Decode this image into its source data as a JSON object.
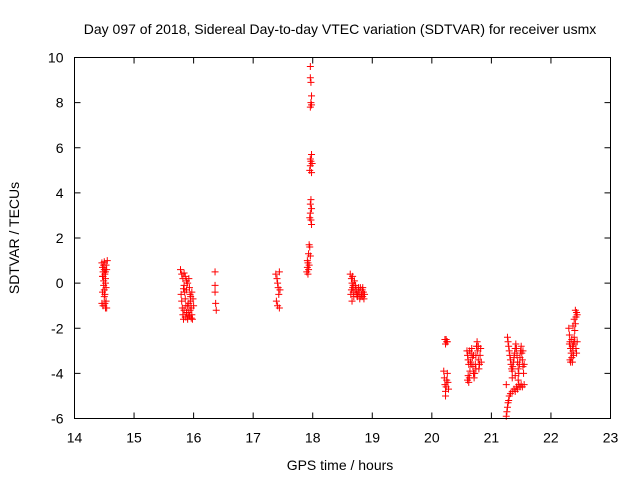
{
  "chart_data": {
    "type": "scatter",
    "title": "Day 097 of 2018, Sidereal Day-to-day VTEC variation (SDTVAR) for receiver usmx",
    "xlabel": "GPS time / hours",
    "ylabel": "SDTVAR / TECUs",
    "xlim": [
      14,
      23
    ],
    "ylim": [
      -6,
      10
    ],
    "xticks": [
      "14",
      "15",
      "16",
      "17",
      "18",
      "19",
      "20",
      "21",
      "22",
      "23"
    ],
    "yticks": [
      "-6",
      "-4",
      "-2",
      "0",
      "2",
      "4",
      "6",
      "8",
      "10"
    ],
    "grid": false,
    "marker": "plus",
    "marker_color": "#ff0000",
    "series": [
      {
        "name": "SDTVAR",
        "points": [
          [
            14.46,
            0.9
          ],
          [
            14.47,
            0.7
          ],
          [
            14.48,
            0.5
          ],
          [
            14.48,
            0.3
          ],
          [
            14.49,
            0.1
          ],
          [
            14.49,
            -0.1
          ],
          [
            14.5,
            -0.3
          ],
          [
            14.5,
            -0.6
          ],
          [
            14.51,
            -0.9
          ],
          [
            14.52,
            -1.1
          ],
          [
            14.5,
            0.6
          ],
          [
            14.51,
            0.4
          ],
          [
            14.52,
            0.2
          ],
          [
            14.52,
            0.0
          ],
          [
            14.53,
            0.8
          ],
          [
            14.49,
            0.8
          ],
          [
            14.47,
            0.3
          ],
          [
            14.51,
            -0.5
          ],
          [
            14.53,
            -0.8
          ],
          [
            14.48,
            -1.0
          ],
          [
            14.54,
            0.6
          ],
          [
            14.55,
            1.0
          ],
          [
            14.53,
            -0.2
          ],
          [
            14.47,
            -0.4
          ],
          [
            14.46,
            -0.9
          ],
          [
            14.5,
            0.95
          ],
          [
            14.52,
            0.5
          ],
          [
            14.54,
            -1.1
          ],
          [
            15.78,
            0.6
          ],
          [
            15.8,
            0.4
          ],
          [
            15.82,
            0.2
          ],
          [
            15.84,
            -0.1
          ],
          [
            15.85,
            -0.4
          ],
          [
            15.86,
            -0.7
          ],
          [
            15.87,
            -1.0
          ],
          [
            15.88,
            -1.3
          ],
          [
            15.89,
            -1.5
          ],
          [
            15.9,
            -1.6
          ],
          [
            15.8,
            -0.8
          ],
          [
            15.81,
            -1.1
          ],
          [
            15.82,
            -1.4
          ],
          [
            15.83,
            -1.6
          ],
          [
            15.79,
            -0.5
          ],
          [
            15.84,
            -1.2
          ],
          [
            15.86,
            -1.5
          ],
          [
            15.88,
            -0.3
          ],
          [
            15.9,
            0.0
          ],
          [
            15.92,
            0.2
          ],
          [
            15.93,
            -0.2
          ],
          [
            15.94,
            -0.5
          ],
          [
            15.95,
            -0.8
          ],
          [
            15.96,
            -1.1
          ],
          [
            15.97,
            -1.4
          ],
          [
            15.98,
            -1.6
          ],
          [
            15.92,
            -0.9
          ],
          [
            15.91,
            -1.3
          ],
          [
            15.95,
            -0.6
          ],
          [
            15.97,
            -0.4
          ],
          [
            15.99,
            -0.7
          ],
          [
            16.0,
            -1.0
          ],
          [
            15.88,
            0.1
          ],
          [
            15.86,
            0.3
          ],
          [
            15.84,
            0.45
          ],
          [
            15.83,
            -0.25
          ],
          [
            15.96,
            -1.55
          ],
          [
            15.94,
            -1.2
          ],
          [
            15.9,
            -1.0
          ],
          [
            15.93,
            -1.45
          ],
          [
            16.36,
            0.5
          ],
          [
            16.36,
            -0.1
          ],
          [
            16.36,
            -0.4
          ],
          [
            16.37,
            -0.9
          ],
          [
            16.38,
            -1.2
          ],
          [
            17.38,
            0.4
          ],
          [
            17.4,
            0.2
          ],
          [
            17.41,
            0.0
          ],
          [
            17.42,
            -0.2
          ],
          [
            17.43,
            -0.5
          ],
          [
            17.44,
            0.5
          ],
          [
            17.45,
            -0.3
          ],
          [
            17.39,
            -0.8
          ],
          [
            17.41,
            -1.0
          ],
          [
            17.44,
            -1.1
          ],
          [
            17.9,
            0.5
          ],
          [
            17.91,
            0.7
          ],
          [
            17.92,
            0.9
          ],
          [
            17.93,
            1.3
          ],
          [
            17.94,
            1.7
          ],
          [
            17.95,
            1.6
          ],
          [
            17.92,
            0.4
          ],
          [
            17.93,
            0.6
          ],
          [
            17.96,
            1.2
          ],
          [
            17.91,
            1.0
          ],
          [
            17.94,
            0.8
          ],
          [
            17.95,
            2.9
          ],
          [
            17.96,
            3.1
          ],
          [
            17.96,
            3.5
          ],
          [
            17.97,
            3.7
          ],
          [
            17.98,
            3.3
          ],
          [
            17.97,
            2.8
          ],
          [
            17.98,
            2.6
          ],
          [
            17.95,
            5.0
          ],
          [
            17.96,
            5.2
          ],
          [
            17.97,
            5.4
          ],
          [
            17.98,
            5.7
          ],
          [
            17.99,
            5.3
          ],
          [
            17.98,
            4.9
          ],
          [
            17.96,
            5.5
          ],
          [
            17.96,
            7.8
          ],
          [
            17.97,
            8.0
          ],
          [
            17.98,
            8.3
          ],
          [
            17.97,
            8.9
          ],
          [
            17.96,
            9.1
          ],
          [
            17.96,
            9.6
          ],
          [
            17.98,
            7.9
          ],
          [
            18.63,
            0.4
          ],
          [
            18.65,
            0.2
          ],
          [
            18.66,
            0.0
          ],
          [
            18.67,
            -0.2
          ],
          [
            18.68,
            -0.4
          ],
          [
            18.69,
            -0.6
          ],
          [
            18.66,
            -0.8
          ],
          [
            18.64,
            -0.5
          ],
          [
            18.65,
            -0.3
          ],
          [
            18.7,
            0.1
          ],
          [
            18.72,
            -0.1
          ],
          [
            18.74,
            -0.3
          ],
          [
            18.76,
            -0.5
          ],
          [
            18.78,
            -0.4
          ],
          [
            18.8,
            -0.2
          ],
          [
            18.82,
            -0.5
          ],
          [
            18.84,
            -0.6
          ],
          [
            18.85,
            -0.4
          ],
          [
            18.86,
            -0.7
          ],
          [
            18.83,
            -0.3
          ],
          [
            18.81,
            -0.6
          ],
          [
            18.79,
            -0.7
          ],
          [
            18.77,
            -0.2
          ],
          [
            18.75,
            -0.6
          ],
          [
            18.73,
            -0.5
          ],
          [
            18.71,
            -0.3
          ],
          [
            18.68,
            -0.1
          ],
          [
            18.67,
            0.3
          ],
          [
            18.87,
            -0.5
          ],
          [
            18.84,
            -0.2
          ],
          [
            20.22,
            -2.5
          ],
          [
            20.23,
            -2.7
          ],
          [
            20.25,
            -2.6
          ],
          [
            20.24,
            -2.5
          ],
          [
            20.26,
            -2.6
          ],
          [
            20.2,
            -3.9
          ],
          [
            20.21,
            -4.2
          ],
          [
            20.22,
            -4.5
          ],
          [
            20.23,
            -4.8
          ],
          [
            20.24,
            -4.6
          ],
          [
            20.25,
            -4.3
          ],
          [
            20.26,
            -4.0
          ],
          [
            20.27,
            -4.4
          ],
          [
            20.28,
            -4.7
          ],
          [
            20.23,
            -5.0
          ],
          [
            20.59,
            -3.0
          ],
          [
            20.6,
            -3.2
          ],
          [
            20.61,
            -3.4
          ],
          [
            20.62,
            -3.6
          ],
          [
            20.6,
            -4.3
          ],
          [
            20.61,
            -4.1
          ],
          [
            20.62,
            -4.4
          ],
          [
            20.63,
            -4.2
          ],
          [
            20.64,
            -3.9
          ],
          [
            20.65,
            -3.5
          ],
          [
            20.66,
            -3.1
          ],
          [
            20.67,
            -2.9
          ],
          [
            20.68,
            -3.3
          ],
          [
            20.69,
            -3.7
          ],
          [
            20.7,
            -4.0
          ],
          [
            20.71,
            -4.2
          ],
          [
            20.72,
            -4.0
          ],
          [
            20.73,
            -3.6
          ],
          [
            20.74,
            -3.2
          ],
          [
            20.75,
            -2.8
          ],
          [
            20.76,
            -2.6
          ],
          [
            20.77,
            -3.0
          ],
          [
            20.78,
            -3.4
          ],
          [
            20.79,
            -3.8
          ],
          [
            20.8,
            -3.6
          ],
          [
            20.81,
            -3.2
          ],
          [
            20.82,
            -2.9
          ],
          [
            20.83,
            -3.5
          ],
          [
            20.63,
            -3.0
          ],
          [
            20.66,
            -3.6
          ],
          [
            20.7,
            -3.2
          ],
          [
            20.74,
            -3.8
          ],
          [
            20.78,
            -2.8
          ],
          [
            21.25,
            -5.9
          ],
          [
            21.26,
            -5.7
          ],
          [
            21.27,
            -5.5
          ],
          [
            21.28,
            -5.3
          ],
          [
            21.29,
            -5.2
          ],
          [
            21.3,
            -5.0
          ],
          [
            21.32,
            -4.9
          ],
          [
            21.35,
            -4.8
          ],
          [
            21.38,
            -4.7
          ],
          [
            21.4,
            -4.8
          ],
          [
            21.42,
            -4.6
          ],
          [
            21.44,
            -4.7
          ],
          [
            21.46,
            -4.5
          ],
          [
            21.48,
            -4.6
          ],
          [
            21.5,
            -4.5
          ],
          [
            21.52,
            -4.6
          ],
          [
            21.55,
            -4.5
          ],
          [
            21.25,
            -4.5
          ],
          [
            21.27,
            -2.4
          ],
          [
            21.28,
            -2.6
          ],
          [
            21.29,
            -2.8
          ],
          [
            21.3,
            -3.0
          ],
          [
            21.31,
            -3.2
          ],
          [
            21.32,
            -3.4
          ],
          [
            21.33,
            -3.6
          ],
          [
            21.34,
            -3.8
          ],
          [
            21.35,
            -3.9
          ],
          [
            21.36,
            -3.7
          ],
          [
            21.37,
            -3.5
          ],
          [
            21.38,
            -3.3
          ],
          [
            21.39,
            -3.1
          ],
          [
            21.4,
            -2.9
          ],
          [
            21.41,
            -2.7
          ],
          [
            21.42,
            -2.9
          ],
          [
            21.43,
            -3.2
          ],
          [
            21.44,
            -3.5
          ],
          [
            21.45,
            -3.8
          ],
          [
            21.46,
            -4.0
          ],
          [
            21.47,
            -3.6
          ],
          [
            21.48,
            -3.3
          ],
          [
            21.49,
            -3.0
          ],
          [
            21.5,
            -2.8
          ],
          [
            21.51,
            -3.1
          ],
          [
            21.52,
            -3.4
          ],
          [
            21.53,
            -3.7
          ],
          [
            21.54,
            -4.0
          ],
          [
            21.55,
            -3.6
          ],
          [
            21.53,
            -3.0
          ],
          [
            21.35,
            -4.2
          ],
          [
            21.4,
            -4.1
          ],
          [
            21.45,
            -4.3
          ],
          [
            22.3,
            -2.0
          ],
          [
            22.31,
            -2.3
          ],
          [
            22.32,
            -2.6
          ],
          [
            22.33,
            -2.9
          ],
          [
            22.34,
            -3.1
          ],
          [
            22.35,
            -3.3
          ],
          [
            22.36,
            -3.5
          ],
          [
            22.37,
            -3.0
          ],
          [
            22.38,
            -2.7
          ],
          [
            22.39,
            -2.4
          ],
          [
            22.4,
            -2.1
          ],
          [
            22.41,
            -1.8
          ],
          [
            22.42,
            -1.5
          ],
          [
            22.43,
            -1.3
          ],
          [
            22.44,
            -1.4
          ],
          [
            22.41,
            -1.2
          ],
          [
            22.39,
            -1.6
          ],
          [
            22.36,
            -2.8
          ],
          [
            22.33,
            -3.5
          ],
          [
            22.32,
            -3.4
          ],
          [
            22.38,
            -3.2
          ],
          [
            22.42,
            -2.9
          ],
          [
            22.44,
            -2.6
          ],
          [
            22.43,
            -3.1
          ],
          [
            22.31,
            -2.7
          ],
          [
            22.35,
            -2.5
          ],
          [
            22.37,
            -1.9
          ],
          [
            22.4,
            -2.6
          ]
        ]
      }
    ]
  }
}
